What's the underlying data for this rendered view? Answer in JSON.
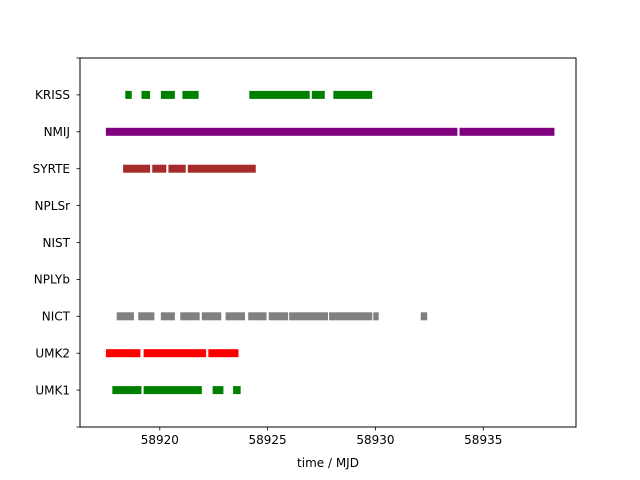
{
  "chart_data": {
    "type": "timeline",
    "title": "",
    "xlabel": "time / MJD",
    "ylabel": "",
    "xlim": [
      58916.3,
      58939.3
    ],
    "ylim": [
      -1,
      9
    ],
    "xticks": [
      58920,
      58925,
      58930,
      58935
    ],
    "categories": [
      "UMK1",
      "UMK2",
      "NICT",
      "NPLYb",
      "NIST",
      "NPLSr",
      "SYRTE",
      "NMIJ",
      "KRISS"
    ],
    "grid": false,
    "legend": "none",
    "series": [
      {
        "name": "UMK1",
        "color": "#008000",
        "intervals": [
          [
            58917.8,
            58919.15
          ],
          [
            58919.25,
            58921.95
          ],
          [
            58922.45,
            58922.95
          ],
          [
            58923.4,
            58923.75
          ]
        ]
      },
      {
        "name": "UMK2",
        "color": "#ff0000",
        "intervals": [
          [
            58917.5,
            58919.1
          ],
          [
            58919.25,
            58922.15
          ],
          [
            58922.25,
            58923.65
          ]
        ]
      },
      {
        "name": "NICT",
        "color": "#808080",
        "intervals": [
          [
            58918.0,
            58918.8
          ],
          [
            58919.0,
            58919.75
          ],
          [
            58920.05,
            58920.7
          ],
          [
            58920.95,
            58921.85
          ],
          [
            58921.95,
            58922.85
          ],
          [
            58923.05,
            58923.95
          ],
          [
            58924.1,
            58924.95
          ],
          [
            58925.05,
            58925.95
          ],
          [
            58926.0,
            58927.8
          ],
          [
            58927.85,
            58929.85
          ],
          [
            58929.9,
            58930.15
          ],
          [
            58932.1,
            58932.4
          ]
        ]
      },
      {
        "name": "NPLYb",
        "color": "#808080",
        "intervals": []
      },
      {
        "name": "NIST",
        "color": "#808080",
        "intervals": []
      },
      {
        "name": "NPLSr",
        "color": "#808080",
        "intervals": []
      },
      {
        "name": "SYRTE",
        "color": "#a52a2a",
        "intervals": [
          [
            58918.3,
            58919.55
          ],
          [
            58919.65,
            58920.3
          ],
          [
            58920.4,
            58921.2
          ],
          [
            58921.3,
            58924.45
          ]
        ]
      },
      {
        "name": "NMIJ",
        "color": "#800080",
        "intervals": [
          [
            58917.5,
            58933.8
          ],
          [
            58933.9,
            58938.3
          ]
        ]
      },
      {
        "name": "KRISS",
        "color": "#008000",
        "intervals": [
          [
            58918.4,
            58918.7
          ],
          [
            58919.15,
            58919.55
          ],
          [
            58920.05,
            58920.7
          ],
          [
            58921.05,
            58921.8
          ],
          [
            58924.15,
            58926.95
          ],
          [
            58927.05,
            58927.65
          ],
          [
            58928.05,
            58929.85
          ]
        ]
      }
    ]
  }
}
